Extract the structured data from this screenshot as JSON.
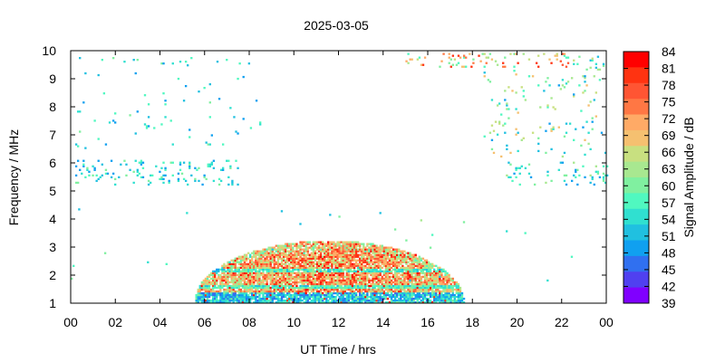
{
  "chart_data": {
    "type": "heatmap",
    "title": "2025-03-05",
    "xlabel": "UT Time / hrs",
    "ylabel": "Frequency / MHz",
    "colorbar_label": "Signal Amplitude / dB",
    "xlim": [
      0,
      24
    ],
    "ylim": [
      1,
      10
    ],
    "color_range": [
      39,
      84
    ],
    "x_ticks": [
      "00",
      "02",
      "04",
      "06",
      "08",
      "10",
      "12",
      "14",
      "16",
      "18",
      "20",
      "22",
      "00"
    ],
    "y_ticks": [
      "1",
      "2",
      "3",
      "4",
      "5",
      "6",
      "7",
      "8",
      "9",
      "10"
    ],
    "colorbar_ticks": [
      "84",
      "81",
      "78",
      "75",
      "72",
      "69",
      "66",
      "63",
      "60",
      "57",
      "54",
      "51",
      "48",
      "45",
      "42",
      "39"
    ],
    "colormap": [
      "#ff0000",
      "#ff3311",
      "#ff5533",
      "#ff7744",
      "#ffaa66",
      "#f5c070",
      "#c8e080",
      "#a8e890",
      "#80f0a0",
      "#50f8c0",
      "#30e0d0",
      "#20c0e0",
      "#10a0f0",
      "#3070f0",
      "#5040f0",
      "#8000ff"
    ],
    "regions": [
      {
        "name": "daytime-band",
        "x": [
          5.5,
          17.6
        ],
        "y": [
          1.0,
          3.2
        ],
        "value_range": [
          48,
          84
        ]
      },
      {
        "name": "upper-left-noise",
        "x": [
          0.2,
          8.5
        ],
        "y": [
          4.5,
          9.8
        ],
        "value_range": [
          48,
          60
        ]
      },
      {
        "name": "upper-right-noise",
        "x": [
          15.5,
          24.0
        ],
        "y": [
          4.5,
          9.9
        ],
        "value_range": [
          48,
          78
        ]
      },
      {
        "name": "top-right-cluster",
        "x": [
          15.0,
          22.5
        ],
        "y": [
          9.4,
          9.9
        ],
        "value_range": [
          57,
          81
        ]
      }
    ]
  }
}
